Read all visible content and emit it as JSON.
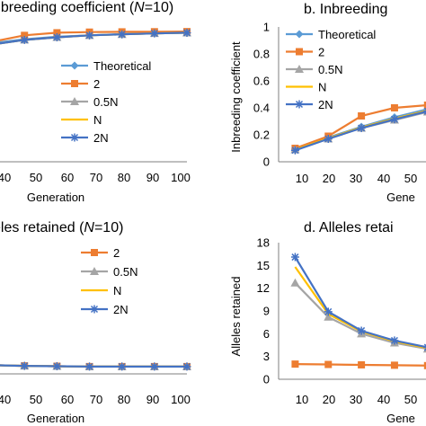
{
  "chart_data": [
    {
      "type": "line",
      "title_parts": [
        "nbreeding coefficient (",
        "N",
        "=10)"
      ],
      "xlabel": "Generation",
      "ylabel": "",
      "x_ticks": [
        "40",
        "50",
        "60",
        "70",
        "80",
        "90",
        "100"
      ],
      "y_ticks": [],
      "xlim": [
        35,
        100
      ],
      "ylim": [
        0,
        1
      ],
      "legend_position": "right",
      "series": [
        {
          "name": "Theoretical",
          "color": "#5b9bd5",
          "marker": "diamond",
          "x": [
            30,
            40,
            50,
            60,
            70,
            80,
            90,
            100
          ],
          "y": [
            0.87,
            0.91,
            0.94,
            0.96,
            0.97,
            0.98,
            0.985,
            0.99
          ]
        },
        {
          "name": "2",
          "color": "#ed7d31",
          "marker": "square",
          "x": [
            30,
            40,
            50,
            60,
            70,
            80,
            90,
            100
          ],
          "y": [
            0.87,
            0.92,
            0.97,
            0.99,
            0.995,
            0.997,
            0.998,
            0.999
          ]
        },
        {
          "name": "0.5N",
          "color": "#a5a5a5",
          "marker": "triangle",
          "x": [
            30,
            40,
            50,
            60,
            70,
            80,
            90,
            100
          ],
          "y": [
            0.86,
            0.9,
            0.935,
            0.955,
            0.97,
            0.978,
            0.985,
            0.99
          ]
        },
        {
          "name": "N",
          "color": "#ffc000",
          "marker": "none",
          "x": [
            30,
            40,
            50,
            60,
            70,
            80,
            90,
            100
          ],
          "y": [
            0.86,
            0.9,
            0.935,
            0.955,
            0.97,
            0.978,
            0.985,
            0.99
          ]
        },
        {
          "name": "2N",
          "color": "#4472c4",
          "marker": "star",
          "x": [
            30,
            40,
            50,
            60,
            70,
            80,
            90,
            100
          ],
          "y": [
            0.86,
            0.9,
            0.935,
            0.955,
            0.97,
            0.978,
            0.985,
            0.99
          ]
        }
      ]
    },
    {
      "type": "line",
      "title": "b. Inbreeding",
      "xlabel": "Gene",
      "ylabel": "Inbreeding coefficient",
      "x_ticks": [
        "10",
        "20",
        "30",
        "40",
        "50"
      ],
      "y_ticks": [
        "0",
        "0.2",
        "0.4",
        "0.6",
        "0.8",
        "1"
      ],
      "xlim": [
        5,
        62
      ],
      "ylim": [
        0,
        1
      ],
      "legend_position": "top-left",
      "series": [
        {
          "name": "Theoretical",
          "color": "#5b9bd5",
          "marker": "diamond",
          "x": [
            10,
            20,
            30,
            40,
            50,
            60
          ],
          "y": [
            0.095,
            0.18,
            0.26,
            0.33,
            0.39,
            0.45
          ]
        },
        {
          "name": "2",
          "color": "#ed7d31",
          "marker": "square",
          "x": [
            10,
            20,
            30,
            40,
            50,
            60
          ],
          "y": [
            0.1,
            0.19,
            0.34,
            0.4,
            0.42,
            0.45
          ]
        },
        {
          "name": "0.5N",
          "color": "#a5a5a5",
          "marker": "triangle",
          "x": [
            10,
            20,
            30,
            40,
            50,
            60
          ],
          "y": [
            0.09,
            0.17,
            0.25,
            0.31,
            0.37,
            0.43
          ]
        },
        {
          "name": "N",
          "color": "#ffc000",
          "marker": "none",
          "x": [
            10,
            20,
            30,
            40,
            50,
            60
          ],
          "y": [
            0.09,
            0.175,
            0.255,
            0.32,
            0.38,
            0.44
          ]
        },
        {
          "name": "2N",
          "color": "#4472c4",
          "marker": "star",
          "x": [
            10,
            20,
            30,
            40,
            50,
            60
          ],
          "y": [
            0.085,
            0.17,
            0.25,
            0.315,
            0.375,
            0.435
          ]
        }
      ]
    },
    {
      "type": "line",
      "title_parts": [
        "eles retained (",
        "N",
        "=10)"
      ],
      "xlabel": "Generation",
      "ylabel": "",
      "x_ticks": [
        "40",
        "50",
        "60",
        "70",
        "80",
        "90",
        "100"
      ],
      "y_ticks": [],
      "xlim": [
        35,
        100
      ],
      "ylim": [
        0,
        18
      ],
      "legend_position": "top-right",
      "series": [
        {
          "name": "2",
          "color": "#ed7d31",
          "marker": "square",
          "x": [
            30,
            40,
            50,
            60,
            70,
            80,
            90,
            100
          ],
          "y": [
            1.3,
            1.2,
            1.1,
            1.05,
            1.0,
            1.0,
            1.0,
            1.0
          ]
        },
        {
          "name": "0.5N",
          "color": "#a5a5a5",
          "marker": "triangle",
          "x": [
            30,
            40,
            50,
            60,
            70,
            80,
            90,
            100
          ],
          "y": [
            1.3,
            1.2,
            1.1,
            1.05,
            1.0,
            1.0,
            1.0,
            1.0
          ]
        },
        {
          "name": "N",
          "color": "#ffc000",
          "marker": "none",
          "x": [
            30,
            40,
            50,
            60,
            70,
            80,
            90,
            100
          ],
          "y": [
            1.3,
            1.2,
            1.1,
            1.05,
            1.0,
            1.0,
            1.0,
            1.0
          ]
        },
        {
          "name": "2N",
          "color": "#4472c4",
          "marker": "star",
          "x": [
            30,
            40,
            50,
            60,
            70,
            80,
            90,
            100
          ],
          "y": [
            1.3,
            1.2,
            1.1,
            1.05,
            1.0,
            1.0,
            1.0,
            1.0
          ]
        }
      ]
    },
    {
      "type": "line",
      "title": "d. Alleles retai",
      "xlabel": "Gene",
      "ylabel": "Alleles retained",
      "x_ticks": [
        "10",
        "20",
        "30",
        "40",
        "50"
      ],
      "y_ticks": [
        "0",
        "3",
        "6",
        "9",
        "12",
        "15",
        "18"
      ],
      "xlim": [
        5,
        62
      ],
      "ylim": [
        0,
        18
      ],
      "legend_position": "none",
      "series": [
        {
          "name": "2",
          "color": "#ed7d31",
          "marker": "square",
          "x": [
            10,
            20,
            30,
            40,
            50,
            60
          ],
          "y": [
            2.0,
            1.95,
            1.9,
            1.85,
            1.8,
            1.8
          ]
        },
        {
          "name": "0.5N",
          "color": "#a5a5a5",
          "marker": "triangle",
          "x": [
            10,
            20,
            30,
            40,
            50,
            60
          ],
          "y": [
            12.7,
            8.2,
            6.0,
            4.8,
            4.0,
            3.4
          ]
        },
        {
          "name": "N",
          "color": "#ffc000",
          "marker": "none",
          "x": [
            10,
            20,
            30,
            40,
            50,
            60
          ],
          "y": [
            14.8,
            8.6,
            6.3,
            5.0,
            4.1,
            3.5
          ]
        },
        {
          "name": "2N",
          "color": "#4472c4",
          "marker": "star",
          "x": [
            10,
            20,
            30,
            40,
            50,
            60
          ],
          "y": [
            16.1,
            8.9,
            6.4,
            5.1,
            4.2,
            3.6
          ]
        }
      ]
    }
  ]
}
